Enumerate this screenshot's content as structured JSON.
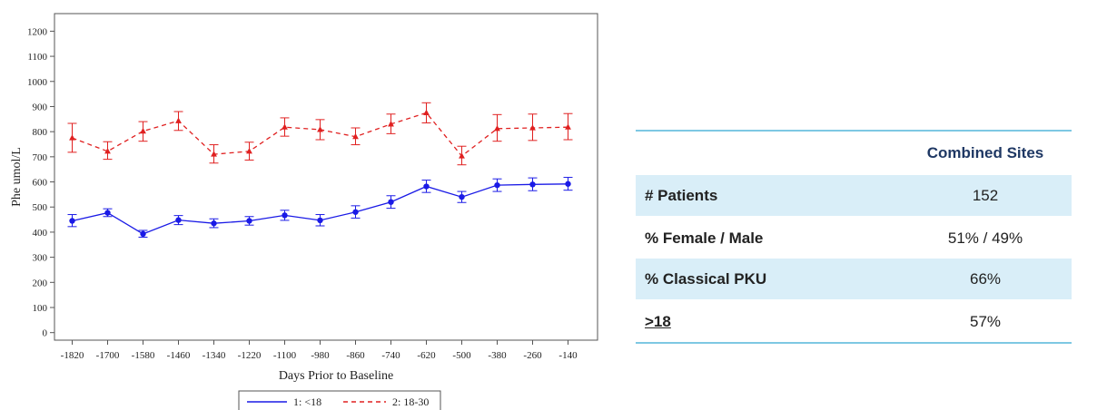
{
  "chart_data": {
    "type": "line",
    "xlabel": "Days Prior to Baseline",
    "ylabel": "Phe umol/L",
    "x_ticks": [
      -1820,
      -1700,
      -1580,
      -1460,
      -1340,
      -1220,
      -1100,
      -980,
      -860,
      -740,
      -620,
      -500,
      -380,
      -260,
      -140
    ],
    "y_ticks": [
      0,
      100,
      200,
      300,
      400,
      500,
      600,
      700,
      800,
      900,
      1000,
      1100,
      1200
    ],
    "xlim": [
      -1880,
      -40
    ],
    "ylim": [
      -30,
      1270
    ],
    "x": [
      -1820,
      -1700,
      -1580,
      -1460,
      -1340,
      -1220,
      -1100,
      -980,
      -860,
      -740,
      -620,
      -500,
      -380,
      -260,
      -140
    ],
    "grid": false,
    "legend_position": "bottom-center",
    "series": [
      {
        "name": "1: <18",
        "color": "#1a1ae6",
        "line_style": "solid",
        "marker": "circle",
        "x": [
          -1820,
          -1700,
          -1580,
          -1460,
          -1340,
          -1220,
          -1100,
          -980,
          -860,
          -740,
          -620,
          -500,
          -380,
          -260,
          -140
        ],
        "values": [
          445,
          477,
          393,
          448,
          435,
          445,
          467,
          447,
          480,
          520,
          582,
          540,
          587,
          590,
          592
        ],
        "lower": [
          422,
          462,
          380,
          430,
          418,
          428,
          447,
          425,
          456,
          495,
          558,
          518,
          562,
          565,
          567
        ],
        "upper": [
          470,
          493,
          407,
          466,
          453,
          462,
          487,
          470,
          505,
          545,
          607,
          562,
          612,
          616,
          618
        ]
      },
      {
        "name": "2: 18-30",
        "color": "#e02020",
        "line_style": "dashed",
        "marker": "triangle",
        "x": [
          -1820,
          -1700,
          -1580,
          -1460,
          -1340,
          -1220,
          -1100,
          -980,
          -860,
          -740,
          -620,
          -500,
          -380,
          -260,
          -140
        ],
        "values": [
          775,
          722,
          802,
          843,
          710,
          722,
          818,
          808,
          780,
          830,
          875,
          703,
          812,
          815,
          818
        ],
        "lower": [
          718,
          690,
          762,
          805,
          675,
          687,
          782,
          768,
          748,
          792,
          835,
          668,
          762,
          765,
          768
        ],
        "upper": [
          833,
          760,
          840,
          880,
          748,
          758,
          855,
          848,
          815,
          870,
          915,
          742,
          868,
          870,
          872
        ]
      }
    ]
  },
  "table": {
    "header": {
      "label": "",
      "value": "Combined Sites"
    },
    "rows": [
      {
        "label": "# Patients",
        "value": "152"
      },
      {
        "label": "% Female / Male",
        "value": "51% / 49%"
      },
      {
        "label": "% Classical PKU",
        "value": "66%"
      },
      {
        "label": ">18",
        "value": "57%"
      }
    ]
  }
}
